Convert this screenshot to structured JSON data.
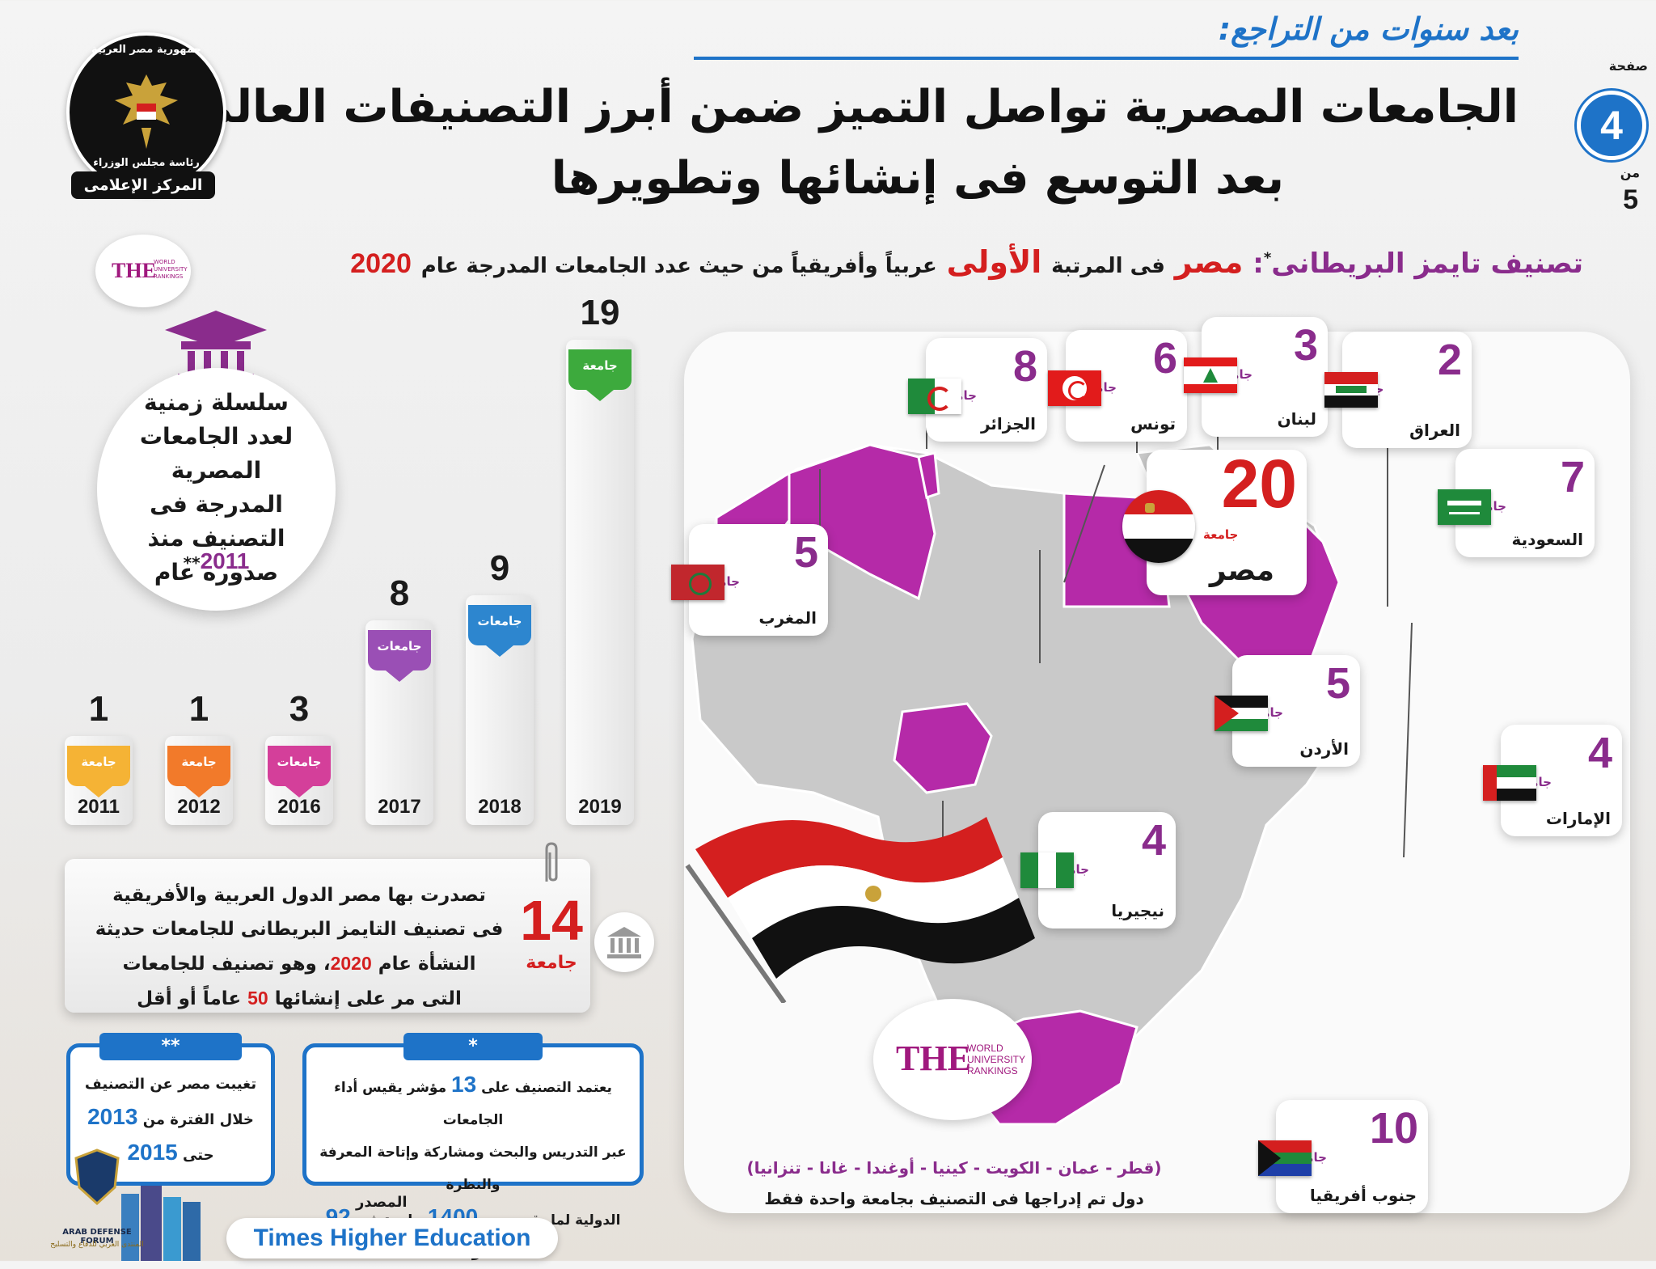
{
  "header": {
    "kicker": "بعد سنوات من التراجع:",
    "title_line1": "الجامعات المصرية تواصل التميز ضمن أبرز التصنيفات العالمية",
    "title_line2": "بعد التوسع فى إنشائها وتطويرها",
    "page_label": "صفحة",
    "page_number": "4",
    "page_of": "من",
    "page_total": "5",
    "logo_text_top": "جمهورية مصر العربية",
    "logo_text_mid": "رئاسة مجلس الوزراء",
    "logo_text_bottom": "المركز الإعلامى"
  },
  "subtitle": {
    "prefix": "تصنيف تايمز البريطانى",
    "mark": "*",
    "colon": ":",
    "country": "مصر",
    "text1": "فى المرتبة",
    "rank": "الأولى",
    "text2": "عربياً وأفريقياً من حيث عدد الجامعات المدرجة عام",
    "year": "2020"
  },
  "the_badge": {
    "letters": "THE",
    "line1": "WORLD",
    "line2": "UNIVERSITY",
    "line3": "RANKINGS"
  },
  "timeline_card": {
    "text": "سلسلة زمنية لعدد الجامعات المصرية المدرجة فى التصنيف منذ صدوره عام",
    "year": "2011",
    "mark": "**"
  },
  "chart_data": {
    "type": "bar",
    "title": "",
    "categories": [
      "2011",
      "2012",
      "2016",
      "2017",
      "2018",
      "2019"
    ],
    "values": [
      1,
      1,
      3,
      8,
      9,
      19
    ],
    "tag_labels": [
      "جامعة",
      "جامعة",
      "جامعات",
      "جامعات",
      "جامعات",
      "جامعة"
    ],
    "colors": [
      "#f5b335",
      "#f27a2a",
      "#d43f9a",
      "#9a4fb5",
      "#2d86cf",
      "#3daa3d"
    ]
  },
  "young_universities": {
    "count": "14",
    "unit": "جامعة",
    "line1": "تصدرت بها مصر الدول العربية والأفريقية",
    "line2": "فى تصنيف التايمز البريطانى للجامعات حديثة",
    "line3a": "النشأة عام",
    "line3_year": "2020",
    "line3b": "، وهو تصنيف للجامعات",
    "line4a": "التى مر على إنشائها",
    "line4_num": "50",
    "line4b": "عاماً أو أقل"
  },
  "note_star": {
    "mark": "*",
    "line1a": "يعتمد التصنيف على",
    "line1_num": "13",
    "line1b": "مؤشر يقيس أداء الجامعات",
    "line2": "عبر التدريس والبحث ومشاركة وإتاحة المعرفة والنظرة",
    "line3a": "الدولية لما يقرب من",
    "line3_num1": "1400",
    "line3b": "جامعة فى",
    "line3_num2": "92",
    "line3c": "دولة"
  },
  "note_double_star": {
    "mark": "**",
    "line1": "تغيبت مصر عن التصنيف",
    "line2a": "خلال الفترة من",
    "line2_year": "2013",
    "line3a": "حتى",
    "line3_year": "2015"
  },
  "source": {
    "label": "المصدر",
    "value": "Times Higher Education"
  },
  "watermark": {
    "line1": "ARAB DEFENSE FORUM",
    "line2": "المنتدى العربي للدفاع والتسليح"
  },
  "countries": [
    {
      "key": "algeria",
      "count": "8",
      "unit": "جامعات",
      "name": "الجزائر"
    },
    {
      "key": "tunisia",
      "count": "6",
      "unit": "جامعات",
      "name": "تونس"
    },
    {
      "key": "lebanon",
      "count": "3",
      "unit": "جامعات",
      "name": "لبنان"
    },
    {
      "key": "iraq",
      "count": "2",
      "unit": "جامعة",
      "name": "العراق"
    },
    {
      "key": "saudi",
      "count": "7",
      "unit": "جامعات",
      "name": "السعودية"
    },
    {
      "key": "egypt",
      "count": "20",
      "unit": "جامعة",
      "name": "مصر"
    },
    {
      "key": "morocco",
      "count": "5",
      "unit": "جامعات",
      "name": "المغرب"
    },
    {
      "key": "jordan",
      "count": "5",
      "unit": "جامعات",
      "name": "الأردن"
    },
    {
      "key": "uae",
      "count": "4",
      "unit": "جامعات",
      "name": "الإمارات"
    },
    {
      "key": "nigeria",
      "count": "4",
      "unit": "جامعات",
      "name": "نيجيريا"
    },
    {
      "key": "south_africa",
      "count": "10",
      "unit": "جامعات",
      "name": "جنوب أفريقيا"
    }
  ],
  "single_countries": {
    "list": "(قطر - عمان - الكويت - كينيا - أوغندا - غانا - تنزانيا)",
    "caption": "دول تم إدراجها فى التصنيف بجامعة واحدة فقط"
  },
  "colors": {
    "accent_purple": "#8a2c8c",
    "accent_red": "#d41f1f",
    "accent_blue": "#1e73c8",
    "map_gray": "#c9c9c9",
    "map_highlight": "#b52aa8"
  }
}
